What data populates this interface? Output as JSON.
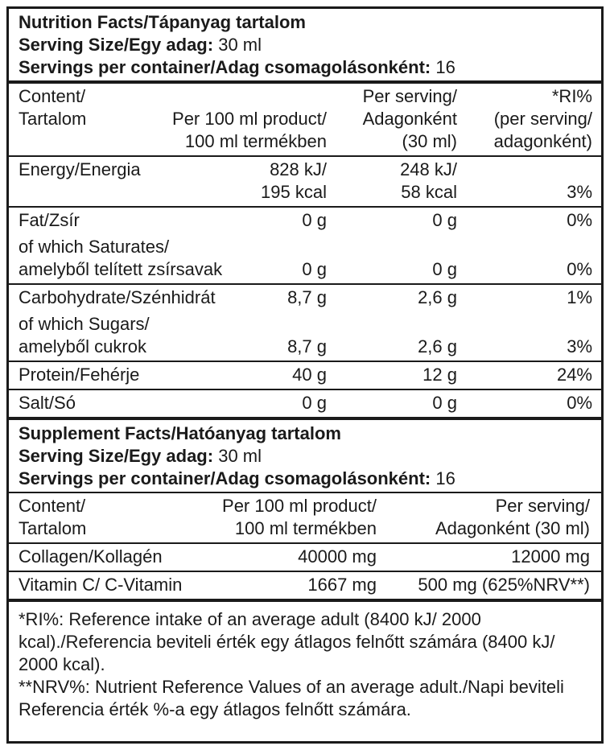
{
  "nutrition": {
    "title": "Nutrition Facts/Tápanyag tartalom",
    "serving_size": {
      "label": "Serving Size/Egy adag:",
      "value": "30 ml"
    },
    "servings": {
      "label": "Servings per container/Adag csomagolásonként:",
      "value": "16"
    },
    "header": [
      "Content/\nTartalom",
      "Per 100 ml product/\n100 ml termékben",
      "Per serving/\nAdagonként\n(30 ml)",
      "*RI%\n(per serving/\nadagonként)"
    ],
    "rows": [
      [
        [
          "Energy/Energia",
          "828 kJ/\n195 kcal",
          "248 kJ/\n58 kcal",
          "3%"
        ]
      ],
      [
        [
          "Fat/Zsír",
          "0 g",
          "0 g",
          "0%"
        ],
        [
          "of which Saturates/\namelyből telített zsírsavak",
          "0 g",
          "0 g",
          "0%"
        ]
      ],
      [
        [
          "Carbohydrate/Szénhidrát",
          "8,7 g",
          "2,6 g",
          "1%"
        ],
        [
          "of which Sugars/\namelyből cukrok",
          "8,7 g",
          "2,6 g",
          "3%"
        ]
      ],
      [
        [
          "Protein/Fehérje",
          "40 g",
          "12 g",
          "24%"
        ]
      ],
      [
        [
          "Salt/Só",
          "0 g",
          "0 g",
          "0%"
        ]
      ]
    ]
  },
  "supplement": {
    "title": "Supplement Facts/Hatóanyag tartalom",
    "serving_size": {
      "label": "Serving Size/Egy adag:",
      "value": "30 ml"
    },
    "servings": {
      "label": "Servings per container/Adag csomagolásonként:",
      "value": "16"
    },
    "header": [
      "Content/\nTartalom",
      "Per 100 ml product/\n100 ml termékben",
      "Per serving/\nAdagonként (30 ml)"
    ],
    "rows": [
      [
        "Collagen/Kollagén",
        "40000 mg",
        "12000 mg"
      ],
      [
        "Vitamin C/ C-Vitamin",
        "1667 mg",
        "500 mg (625%NRV**)"
      ]
    ]
  },
  "footnotes": [
    "*RI%: Reference intake of an average adult (8400 kJ/ 2000 kcal)./Referencia beviteli érték egy átlagos felnőtt számára (8400 kJ/ 2000 kcal).",
    "**NRV%: Nutrient Reference Values of an average adult./Napi beviteli Referencia érték %-a egy átlagos felnőtt számára."
  ]
}
